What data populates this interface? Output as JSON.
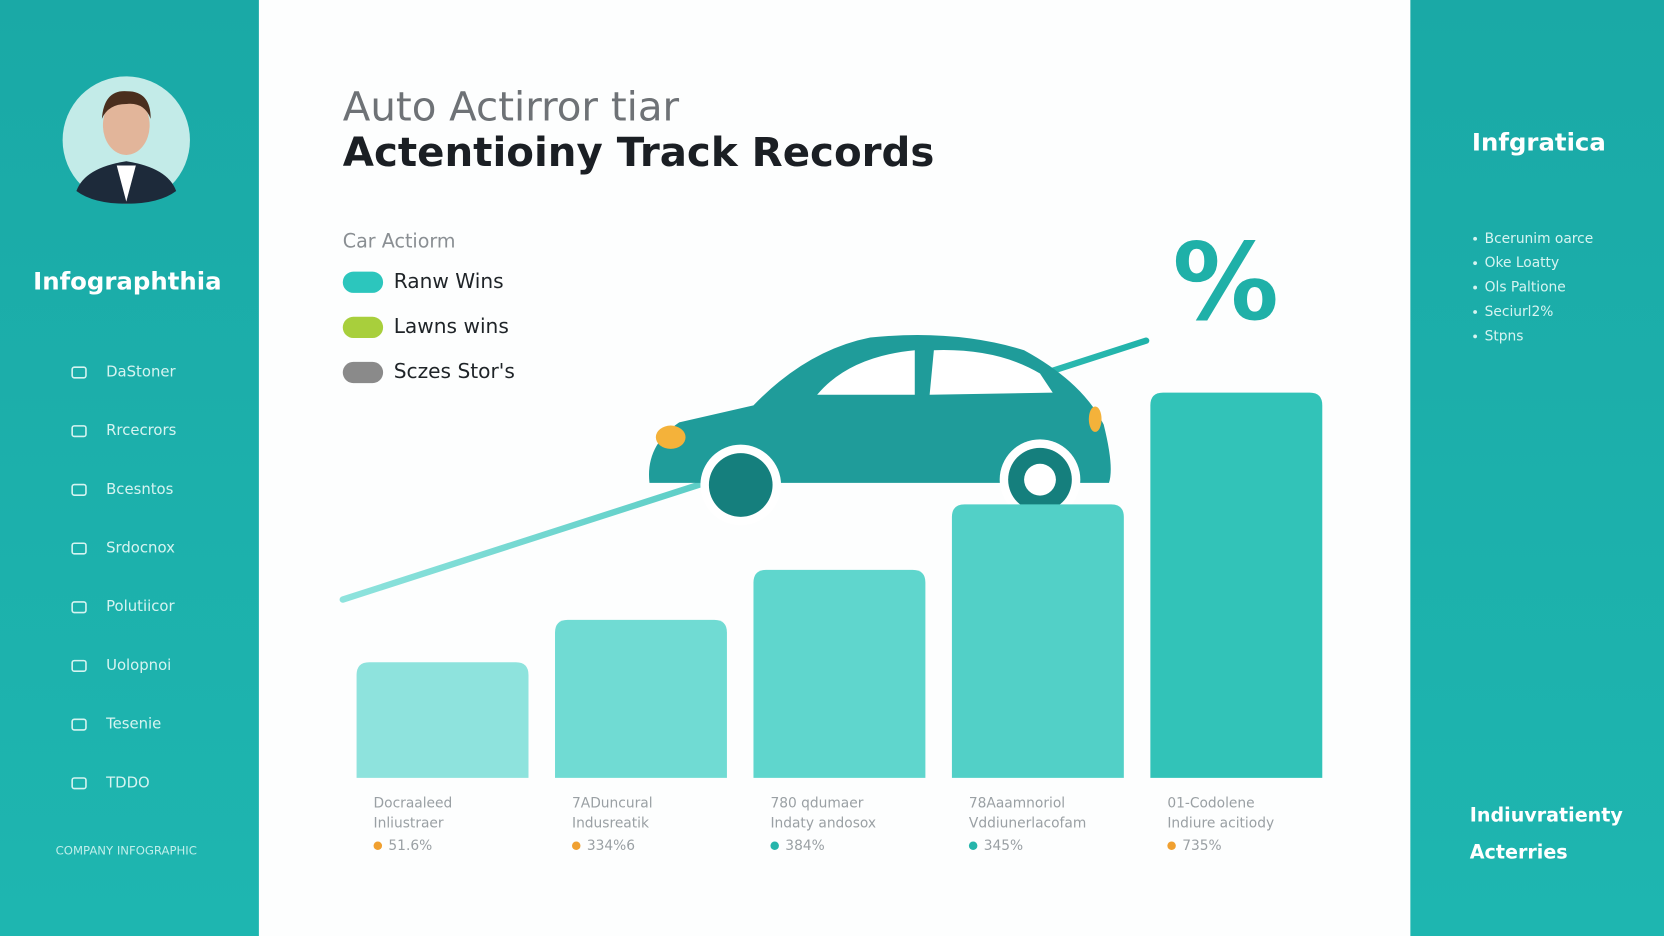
{
  "sidebar": {
    "name": "Infographthia",
    "menu": [
      "DaStoner",
      "Rrcecrors",
      "Bcesntos",
      "Srdocnox",
      "Polutiicor",
      "Uolopnoi",
      "Tesenie",
      "TDDO"
    ],
    "footer": "COMPANY INFOGRAPHIC"
  },
  "header": {
    "line1": "Auto Actirror tiar",
    "line2": "Actentioiny Track Records"
  },
  "legend": {
    "title": "Car Actiorm",
    "items": [
      {
        "name": "Ranw Wins",
        "color": "#2cc6bd"
      },
      {
        "name": "Lawns wins",
        "color": "#a8cf3c"
      },
      {
        "name": "Sczes Stor's",
        "color": "#8a8a8a"
      }
    ]
  },
  "chart_data": {
    "type": "bar",
    "categories": [
      "Docraaleed",
      "7ADuncural",
      "780 qdumaer",
      "78Aaamnoriol",
      "01-Codolene"
    ],
    "category_notes": [
      "Inliustraer",
      "Indusreatik",
      "Indaty andosox",
      "Vddiunerlacofam",
      "Indiure acitiody"
    ],
    "values": [
      30,
      41,
      54,
      71,
      100
    ],
    "colors": [
      "#8ee3dd",
      "#70dbd3",
      "#5fd6cd",
      "#52d0c7",
      "#32c3b8"
    ],
    "ylim": [
      0,
      100
    ]
  },
  "bar_notes": [
    {
      "text": "51.6%",
      "color": "#f0a030"
    },
    {
      "text": "334%6",
      "color": "#f0a030"
    },
    {
      "text": "384%",
      "color": "#25b5ab"
    },
    {
      "text": "345%",
      "color": "#25b5ab"
    },
    {
      "text": "735%",
      "color": "#f0a030"
    }
  ],
  "right_panel": {
    "title": "Infgratica",
    "items": [
      "Bcerunim oarce",
      "Oke Loatty",
      "Ols Paltione",
      "Seciurl2%",
      "Stpns"
    ],
    "footer1": "Indiuvratienty",
    "footer2": "Acterries"
  }
}
